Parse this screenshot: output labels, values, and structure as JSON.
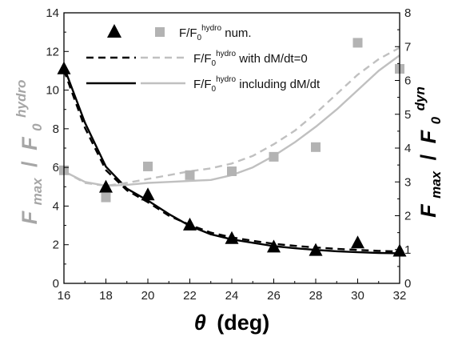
{
  "chart_data": {
    "type": "scatter",
    "xlabel": {
      "symbol": "θ",
      "unit": "(deg)"
    },
    "ylabel_left": {
      "main": "F",
      "sub": "max",
      "sep": "/",
      "main2": "F",
      "sub2": "0",
      "sup2": "hydro"
    },
    "ylabel_right": {
      "main": "F",
      "sub": "max",
      "sep": "/",
      "main2": "F",
      "sub2": "0",
      "sup2": "dyn"
    },
    "xlim": [
      16,
      32
    ],
    "ylim_left": [
      0,
      14
    ],
    "ylim_right": [
      0,
      8
    ],
    "x_ticks": [
      "16",
      "18",
      "20",
      "22",
      "24",
      "26",
      "28",
      "30",
      "32"
    ],
    "y_left_ticks": [
      "0",
      "2",
      "4",
      "6",
      "8",
      "10",
      "12",
      "14"
    ],
    "y_right_ticks": [
      "0",
      "1",
      "2",
      "3",
      "4",
      "5",
      "6",
      "7",
      "8"
    ],
    "legend": [
      {
        "kind": "triangle",
        "pre": "",
        "sup": "",
        "post": ""
      },
      {
        "kind": "square",
        "pre": "F/F",
        "sub": "0",
        "sup": "hydro",
        "post": " num."
      },
      {
        "kind": "dashed-black",
        "pre": "F/F",
        "sub": "0",
        "sup": "hydro",
        "post": " with dM/dt=0"
      },
      {
        "kind": "solid-black",
        "pre": "F/F",
        "sub": "0",
        "sup": "hydro",
        "post": " including dM/dt"
      }
    ],
    "series": [
      {
        "marker": "triangle",
        "axis": "right",
        "color": "#000000",
        "x": [
          16,
          18,
          20,
          22,
          24,
          26,
          28,
          30,
          32
        ],
        "y": [
          6.35,
          2.85,
          2.62,
          1.73,
          1.33,
          1.08,
          0.98,
          1.2,
          0.96
        ]
      },
      {
        "marker": "square",
        "axis": "left",
        "color": "#b3b3b3",
        "x": [
          16,
          18,
          20,
          22,
          24,
          26,
          28,
          30,
          32
        ],
        "y": [
          5.85,
          4.45,
          6.05,
          5.6,
          5.8,
          6.55,
          7.05,
          12.45,
          11.1
        ]
      },
      {
        "line": "dashed",
        "axis": "right",
        "color": "#000000",
        "x": [
          16,
          17,
          18,
          19,
          20,
          21,
          22,
          23,
          24,
          25,
          26,
          27,
          28,
          29,
          30,
          31,
          32
        ],
        "y": [
          6.3,
          4.6,
          3.35,
          2.75,
          2.4,
          2.0,
          1.73,
          1.5,
          1.36,
          1.26,
          1.17,
          1.11,
          1.06,
          1.02,
          0.99,
          0.96,
          0.94
        ]
      },
      {
        "line": "solid",
        "axis": "right",
        "color": "#000000",
        "x": [
          16,
          17,
          18,
          19,
          20,
          21,
          22,
          23,
          24,
          25,
          26,
          27,
          28,
          29,
          30,
          31,
          32
        ],
        "y": [
          6.4,
          4.75,
          3.45,
          2.8,
          2.45,
          2.05,
          1.7,
          1.45,
          1.3,
          1.2,
          1.1,
          1.04,
          0.99,
          0.95,
          0.92,
          0.9,
          0.89
        ]
      },
      {
        "line": "dashed",
        "axis": "left",
        "color": "#c0c0c0",
        "x": [
          16,
          17,
          18,
          19,
          20,
          21,
          22,
          23,
          24,
          25,
          26,
          27,
          28,
          29,
          30,
          31,
          32
        ],
        "y": [
          5.8,
          5.2,
          5.05,
          5.2,
          5.4,
          5.6,
          5.8,
          5.95,
          6.2,
          6.6,
          7.2,
          7.9,
          8.8,
          9.8,
          10.8,
          11.6,
          12.2
        ]
      },
      {
        "line": "solid",
        "axis": "left",
        "color": "#c0c0c0",
        "x": [
          16,
          17,
          18,
          19,
          20,
          21,
          22,
          23,
          24,
          25,
          26,
          27,
          28,
          29,
          30,
          31,
          32
        ],
        "y": [
          5.8,
          5.25,
          5.05,
          5.1,
          5.2,
          5.25,
          5.3,
          5.35,
          5.6,
          6.0,
          6.6,
          7.3,
          8.1,
          9.0,
          10.0,
          11.0,
          11.8
        ]
      }
    ]
  }
}
